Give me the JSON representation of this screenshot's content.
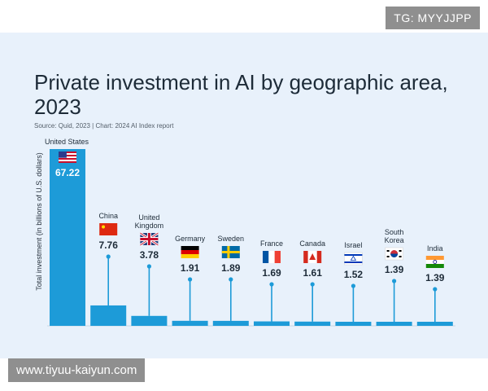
{
  "watermark_top": "TG: MYYJJPP",
  "watermark_bottom": "www.tiyuu-kaiyun.com",
  "chart_data": {
    "type": "bar",
    "title": "Private investment in AI by geographic area, 2023",
    "source": "Source: Quid, 2023 | Chart: 2024 AI Index report",
    "ylabel": "Total investment (in billions of U.S. dollars)",
    "categories": [
      "United States",
      "China",
      "United Kingdom",
      "Germany",
      "Sweden",
      "France",
      "Canada",
      "Israel",
      "South Korea",
      "India"
    ],
    "values": [
      67.22,
      7.76,
      3.78,
      1.91,
      1.89,
      1.69,
      1.61,
      1.52,
      1.39,
      1.39
    ],
    "value_labels": [
      "67.22",
      "7.76",
      "3.78",
      "1.91",
      "1.89",
      "1.69",
      "1.61",
      "1.52",
      "1.39",
      "1.39"
    ],
    "flags": [
      "us-flag-icon",
      "china-flag-icon",
      "uk-flag-icon",
      "germany-flag-icon",
      "sweden-flag-icon",
      "france-flag-icon",
      "canada-flag-icon",
      "israel-flag-icon",
      "south-korea-flag-icon",
      "india-flag-icon"
    ],
    "ylim": [
      0,
      67.22
    ],
    "colors": {
      "bar": "#1d9bd8",
      "background": "#e8f1fb"
    }
  }
}
